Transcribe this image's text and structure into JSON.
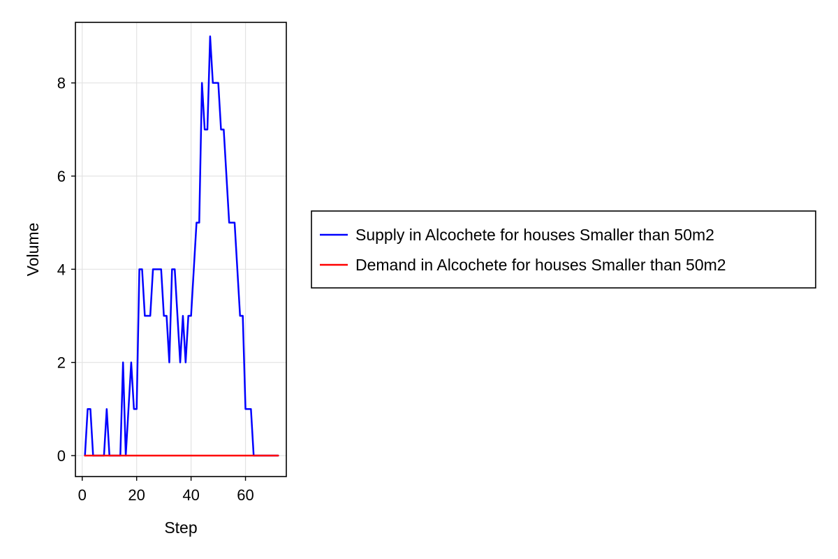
{
  "chart_data": {
    "type": "line",
    "title": "",
    "xlabel": "Step",
    "ylabel": "Volume",
    "xlim": [
      -2.5,
      75
    ],
    "ylim": [
      -0.45,
      9.3
    ],
    "xticks": [
      0,
      20,
      40,
      60
    ],
    "yticks": [
      0,
      2,
      4,
      6,
      8
    ],
    "xtick_labels": [
      "0",
      "20",
      "40",
      "60"
    ],
    "ytick_labels": [
      "0",
      "2",
      "4",
      "6",
      "8"
    ],
    "grid": true,
    "legend_position": "right",
    "series": [
      {
        "name": "Supply in Alcochete for houses Smaller than 50m2",
        "color": "#0000ff",
        "x": [
          1,
          2,
          3,
          4,
          5,
          6,
          7,
          8,
          9,
          10,
          11,
          12,
          13,
          14,
          15,
          16,
          17,
          18,
          19,
          20,
          21,
          22,
          23,
          24,
          25,
          26,
          27,
          28,
          29,
          30,
          31,
          32,
          33,
          34,
          35,
          36,
          37,
          38,
          39,
          40,
          41,
          42,
          43,
          44,
          45,
          46,
          47,
          48,
          49,
          50,
          51,
          52,
          53,
          54,
          55,
          56,
          57,
          58,
          59,
          60,
          61,
          62,
          63,
          64,
          65,
          66,
          67,
          68,
          69,
          70,
          71,
          72
        ],
        "values": [
          0,
          1,
          1,
          0,
          0,
          0,
          0,
          0,
          1,
          0,
          0,
          0,
          0,
          0,
          2,
          0,
          1,
          2,
          1,
          1,
          4,
          4,
          3,
          3,
          3,
          4,
          4,
          4,
          4,
          3,
          3,
          2,
          4,
          4,
          3,
          2,
          3,
          2,
          3,
          3,
          4,
          5,
          5,
          8,
          7,
          7,
          9,
          8,
          8,
          8,
          7,
          7,
          6,
          5,
          5,
          5,
          4,
          3,
          3,
          1,
          1,
          1,
          0,
          0,
          0,
          0,
          0,
          0,
          0,
          0,
          0,
          0
        ]
      },
      {
        "name": "Demand in Alcochete for houses Smaller than 50m2",
        "color": "#ff0000",
        "x": [
          1,
          2,
          3,
          4,
          5,
          6,
          7,
          8,
          9,
          10,
          11,
          12,
          13,
          14,
          15,
          16,
          17,
          18,
          19,
          20,
          21,
          22,
          23,
          24,
          25,
          26,
          27,
          28,
          29,
          30,
          31,
          32,
          33,
          34,
          35,
          36,
          37,
          38,
          39,
          40,
          41,
          42,
          43,
          44,
          45,
          46,
          47,
          48,
          49,
          50,
          51,
          52,
          53,
          54,
          55,
          56,
          57,
          58,
          59,
          60,
          61,
          62,
          63,
          64,
          65,
          66,
          67,
          68,
          69,
          70,
          71,
          72
        ],
        "values": [
          0,
          0,
          0,
          0,
          0,
          0,
          0,
          0,
          0,
          0,
          0,
          0,
          0,
          0,
          0,
          0,
          0,
          0,
          0,
          0,
          0,
          0,
          0,
          0,
          0,
          0,
          0,
          0,
          0,
          0,
          0,
          0,
          0,
          0,
          0,
          0,
          0,
          0,
          0,
          0,
          0,
          0,
          0,
          0,
          0,
          0,
          0,
          0,
          0,
          0,
          0,
          0,
          0,
          0,
          0,
          0,
          0,
          0,
          0,
          0,
          0,
          0,
          0,
          0,
          0,
          0,
          0,
          0,
          0,
          0,
          0,
          0
        ]
      }
    ]
  }
}
